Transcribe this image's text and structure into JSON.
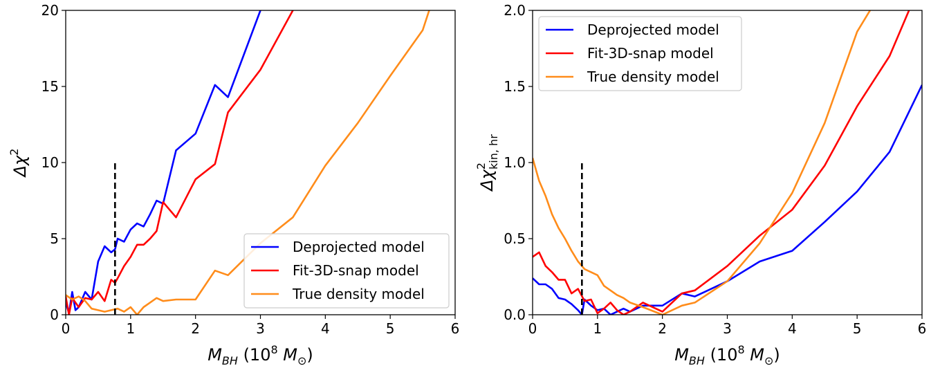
{
  "chart_data": [
    {
      "type": "line",
      "title": "",
      "xlabel": {
        "main": "M",
        "sub": "BH",
        "unit_open": " (10",
        "unit_exp": "8",
        "unit_m": " M",
        "unit_sub": "⊙",
        "unit_close": ")"
      },
      "ylabel": {
        "main": "Δχ",
        "sup": "2",
        "sub": ""
      },
      "xlim": [
        0,
        6
      ],
      "ylim": [
        0,
        20
      ],
      "xticks": [
        "0",
        "1",
        "2",
        "3",
        "4",
        "5",
        "6"
      ],
      "yticks": [
        "0",
        "5",
        "10",
        "15",
        "20"
      ],
      "legend_position": "lower-right",
      "marker_line": {
        "x": 0.76,
        "y": [
          0,
          10
        ],
        "color": "#000000",
        "style": "dashed"
      },
      "series": [
        {
          "name": "Deprojected model",
          "color": "#0000ff",
          "x": [
            0,
            0.05,
            0.1,
            0.15,
            0.2,
            0.3,
            0.4,
            0.5,
            0.6,
            0.7,
            0.76,
            0.8,
            0.9,
            1.0,
            1.1,
            1.2,
            1.3,
            1.4,
            1.5,
            1.7,
            2.0,
            2.3,
            2.5,
            3.0
          ],
          "y": [
            0.8,
            0.1,
            1.5,
            0.3,
            0.5,
            1.5,
            1.0,
            3.5,
            4.5,
            4.1,
            4.3,
            5.0,
            4.8,
            5.6,
            6.0,
            5.8,
            6.6,
            7.5,
            7.3,
            10.8,
            11.9,
            15.1,
            14.3,
            20.0
          ]
        },
        {
          "name": "Fit-3D-snap model",
          "color": "#ff0000",
          "x": [
            0,
            0.05,
            0.1,
            0.2,
            0.3,
            0.4,
            0.5,
            0.6,
            0.7,
            0.76,
            0.8,
            0.9,
            1.0,
            1.1,
            1.2,
            1.3,
            1.4,
            1.5,
            1.7,
            2.0,
            2.3,
            2.5,
            3.0,
            3.5
          ],
          "y": [
            1.2,
            0.0,
            1.1,
            0.5,
            1.1,
            1.0,
            1.5,
            0.9,
            2.3,
            2.1,
            2.4,
            3.2,
            3.8,
            4.6,
            4.6,
            5.0,
            5.5,
            7.4,
            6.4,
            8.9,
            9.9,
            13.3,
            16.1,
            20.0
          ]
        },
        {
          "name": "True density model",
          "color": "#ff8c1a",
          "x": [
            0,
            0.1,
            0.2,
            0.3,
            0.4,
            0.5,
            0.6,
            0.7,
            0.8,
            0.9,
            1.0,
            1.1,
            1.2,
            1.3,
            1.4,
            1.5,
            1.7,
            2.0,
            2.3,
            2.5,
            3.0,
            3.5,
            4.0,
            4.5,
            5.0,
            5.5,
            5.6
          ],
          "y": [
            1.3,
            1.0,
            1.2,
            0.9,
            0.4,
            0.3,
            0.2,
            0.3,
            0.4,
            0.2,
            0.5,
            0.0,
            0.5,
            0.8,
            1.1,
            0.9,
            1.0,
            1.0,
            2.9,
            2.6,
            4.7,
            6.4,
            9.8,
            12.6,
            15.7,
            18.7,
            20.0
          ]
        }
      ]
    },
    {
      "type": "line",
      "title": "",
      "xlabel": {
        "main": "M",
        "sub": "BH",
        "unit_open": " (10",
        "unit_exp": "8",
        "unit_m": " M",
        "unit_sub": "⊙",
        "unit_close": ")"
      },
      "ylabel": {
        "main": "Δχ",
        "sup": "2",
        "sub": "kin, hr"
      },
      "xlim": [
        0,
        6
      ],
      "ylim": [
        0,
        2.0
      ],
      "xticks": [
        "0",
        "1",
        "2",
        "3",
        "4",
        "5",
        "6"
      ],
      "yticks": [
        "0.0",
        "0.5",
        "1.0",
        "1.5",
        "2.0"
      ],
      "legend_position": "upper-left",
      "marker_line": {
        "x": 0.76,
        "y": [
          0,
          1.0
        ],
        "color": "#000000",
        "style": "dashed"
      },
      "series": [
        {
          "name": "Deprojected model",
          "color": "#0000ff",
          "x": [
            0,
            0.1,
            0.2,
            0.3,
            0.4,
            0.5,
            0.6,
            0.7,
            0.76,
            0.8,
            0.9,
            1.0,
            1.1,
            1.2,
            1.3,
            1.4,
            1.5,
            1.7,
            2.0,
            2.3,
            2.5,
            3.0,
            3.5,
            4.0,
            4.5,
            5.0,
            5.5,
            6.0
          ],
          "y": [
            0.24,
            0.2,
            0.2,
            0.17,
            0.11,
            0.1,
            0.07,
            0.03,
            0.0,
            0.1,
            0.06,
            0.03,
            0.04,
            0.0,
            0.02,
            0.04,
            0.02,
            0.06,
            0.06,
            0.14,
            0.12,
            0.22,
            0.35,
            0.42,
            0.61,
            0.81,
            1.07,
            1.51
          ]
        },
        {
          "name": "Fit-3D-snap model",
          "color": "#ff0000",
          "x": [
            0,
            0.1,
            0.2,
            0.3,
            0.4,
            0.5,
            0.6,
            0.7,
            0.8,
            0.9,
            1.0,
            1.1,
            1.2,
            1.3,
            1.4,
            1.5,
            1.7,
            2.0,
            2.3,
            2.5,
            3.0,
            3.5,
            4.0,
            4.5,
            5.0,
            5.5,
            5.8
          ],
          "y": [
            0.38,
            0.41,
            0.32,
            0.28,
            0.23,
            0.23,
            0.14,
            0.17,
            0.09,
            0.1,
            0.01,
            0.04,
            0.08,
            0.03,
            0.0,
            0.02,
            0.08,
            0.02,
            0.14,
            0.16,
            0.32,
            0.52,
            0.69,
            0.98,
            1.37,
            1.7,
            2.0
          ]
        },
        {
          "name": "True density model",
          "color": "#ff8c1a",
          "x": [
            0,
            0.1,
            0.2,
            0.3,
            0.4,
            0.5,
            0.6,
            0.7,
            0.8,
            0.9,
            1.0,
            1.1,
            1.2,
            1.3,
            1.4,
            1.5,
            1.7,
            2.0,
            2.3,
            2.5,
            3.0,
            3.5,
            4.0,
            4.5,
            5.0,
            5.2
          ],
          "y": [
            1.03,
            0.88,
            0.78,
            0.66,
            0.57,
            0.5,
            0.42,
            0.35,
            0.3,
            0.28,
            0.26,
            0.19,
            0.16,
            0.13,
            0.11,
            0.08,
            0.05,
            0.0,
            0.06,
            0.08,
            0.22,
            0.47,
            0.8,
            1.26,
            1.86,
            2.0
          ]
        }
      ]
    }
  ]
}
